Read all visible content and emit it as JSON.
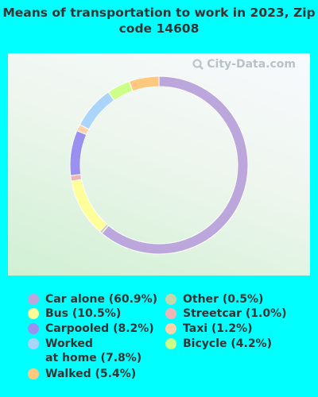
{
  "chart_data": {
    "type": "pie",
    "style": "donut",
    "title": "Means of transportation to work in 2023, Zip code 14608",
    "watermark": "City-Data.com",
    "slices": [
      {
        "label": "Car alone (60.9%)",
        "value": 60.9,
        "color": "#bba7db"
      },
      {
        "label": "Other (0.5%)",
        "value": 0.5,
        "color": "#c8d5a8"
      },
      {
        "label": "Bus (10.5%)",
        "value": 10.5,
        "color": "#ffff99"
      },
      {
        "label": "Streetcar (1.0%)",
        "value": 1.0,
        "color": "#f0b4b4"
      },
      {
        "label": "Carpooled (8.2%)",
        "value": 8.2,
        "color": "#9a90f0"
      },
      {
        "label": "Taxi (1.2%)",
        "value": 1.2,
        "color": "#ffd2aa"
      },
      {
        "label": "Worked\nat home (7.8%)",
        "value": 7.8,
        "color": "#aad4fa"
      },
      {
        "label": "Bicycle (4.2%)",
        "value": 4.2,
        "color": "#ccff88"
      },
      {
        "label": "Walked (5.4%)",
        "value": 5.4,
        "color": "#ffc880"
      }
    ]
  }
}
